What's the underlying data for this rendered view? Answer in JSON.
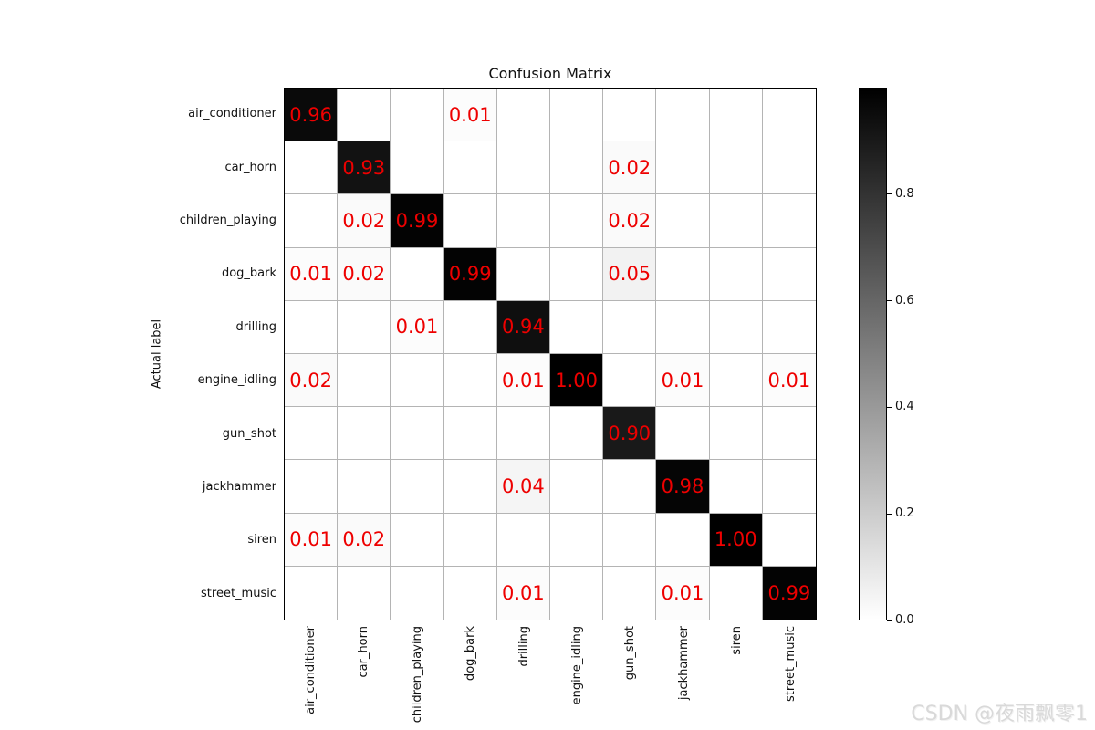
{
  "title": "Confusion Matrix",
  "watermark": "CSDN @夜雨飘零1",
  "colors": {
    "cell_text": "#ee0000",
    "grid_line": "#b4b4b4",
    "axis_spine": "#000000",
    "watermark_text": "#d9d9d9"
  },
  "chart_data": {
    "type": "heatmap",
    "title": "Confusion Matrix",
    "ylabel": "Actual label",
    "xlabel": "",
    "categories": [
      "air_conditioner",
      "car_horn",
      "children_playing",
      "dog_bark",
      "drilling",
      "engine_idling",
      "gun_shot",
      "jackhammer",
      "siren",
      "street_music"
    ],
    "matrix": [
      [
        0.96,
        0,
        0,
        0.01,
        0,
        0,
        0,
        0,
        0,
        0
      ],
      [
        0,
        0.93,
        0,
        0,
        0,
        0,
        0.02,
        0,
        0,
        0
      ],
      [
        0,
        0.02,
        0.99,
        0,
        0,
        0,
        0.02,
        0,
        0,
        0
      ],
      [
        0.01,
        0.02,
        0,
        0.99,
        0,
        0,
        0.05,
        0,
        0,
        0
      ],
      [
        0,
        0,
        0.01,
        0,
        0.94,
        0,
        0,
        0,
        0,
        0
      ],
      [
        0.02,
        0,
        0,
        0,
        0.01,
        1.0,
        0,
        0.01,
        0,
        0.01
      ],
      [
        0,
        0,
        0,
        0,
        0,
        0,
        0.9,
        0,
        0,
        0
      ],
      [
        0,
        0,
        0,
        0,
        0.04,
        0,
        0,
        0.98,
        0,
        0
      ],
      [
        0.01,
        0.02,
        0,
        0,
        0,
        0,
        0,
        0,
        1.0,
        0
      ],
      [
        0,
        0,
        0,
        0,
        0.01,
        0,
        0,
        0.01,
        0,
        0.99
      ]
    ],
    "value_format": "0.00 (values below 0.01 left blank)",
    "colormap": "greys: 0 = white, 1 = black (cell shade = 1 - value)",
    "grid": true,
    "legend_position": "none",
    "colorbar": {
      "position": "right",
      "vmin": 0.0,
      "vmax": 1.0,
      "tick_values": [
        0.8,
        0.6,
        0.4,
        0.2,
        0.0
      ],
      "tick_labels": [
        "0.8",
        "0.6",
        "0.4",
        "0.2",
        "0.0"
      ]
    }
  }
}
